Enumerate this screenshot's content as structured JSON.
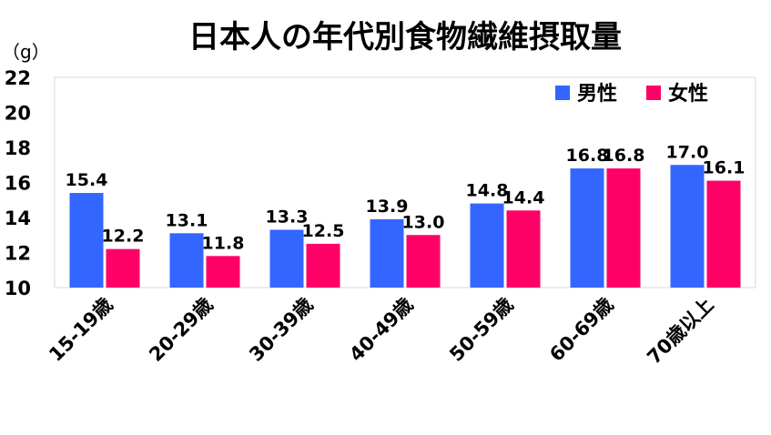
{
  "chart_data": {
    "type": "bar",
    "title": "日本人の年代別食物繊維摂取量",
    "unit_label": "（g）",
    "categories": [
      "15-19歳",
      "20-29歳",
      "30-39歳",
      "40-49歳",
      "50-59歳",
      "60-69歳",
      "70歳以上"
    ],
    "series": [
      {
        "name": "男性",
        "color": "#3366ff",
        "values": [
          15.4,
          13.1,
          13.3,
          13.9,
          14.8,
          16.8,
          17.0
        ]
      },
      {
        "name": "女性",
        "color": "#ff0066",
        "values": [
          12.2,
          11.8,
          12.5,
          13.0,
          14.4,
          16.8,
          16.1
        ]
      }
    ],
    "yticks": [
      10,
      12,
      14,
      16,
      18,
      20,
      22
    ],
    "ylim": [
      10,
      22
    ],
    "grid": false,
    "legend_position": "top-right",
    "value_decimals": 1
  }
}
